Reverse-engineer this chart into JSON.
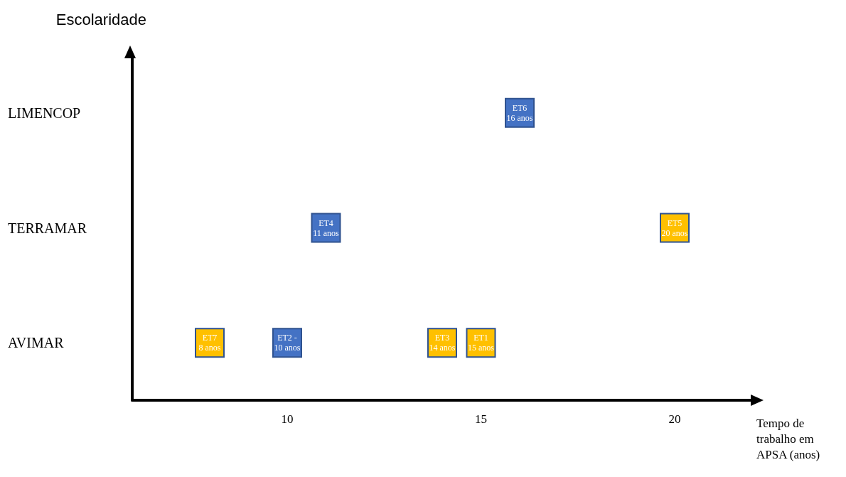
{
  "chart_data": {
    "type": "scatter",
    "orientation": "horizontal",
    "ylabel": "Escolaridade",
    "xlabel": "Tempo de trabalho em APSA (anos)",
    "categories": [
      "LIMENCOP",
      "TERRAMAR",
      "AVIMAR"
    ],
    "xlim": [
      6,
      22
    ],
    "xticks": [
      10,
      15,
      20
    ],
    "grid": false,
    "legend": false,
    "marker": "square",
    "series": [
      {
        "name": "ET7",
        "color": "#ffc000",
        "values": [
          null,
          null,
          8
        ],
        "value_labels": [
          null,
          null,
          "8 anos"
        ]
      },
      {
        "name": "ET2 -",
        "color": "#4472c4",
        "values": [
          null,
          null,
          10
        ],
        "value_labels": [
          null,
          null,
          "10 anos"
        ]
      },
      {
        "name": "ET3",
        "color": "#ffc000",
        "values": [
          null,
          null,
          14
        ],
        "value_labels": [
          null,
          null,
          "14 anos"
        ]
      },
      {
        "name": "ET1",
        "color": "#ffc000",
        "values": [
          null,
          null,
          15
        ],
        "value_labels": [
          null,
          null,
          "15 anos"
        ]
      },
      {
        "name": "ET4",
        "color": "#4472c4",
        "values": [
          null,
          11,
          null
        ],
        "value_labels": [
          null,
          "11 anos",
          null
        ]
      },
      {
        "name": "ET6",
        "color": "#4472c4",
        "values": [
          16,
          null,
          null
        ],
        "value_labels": [
          "16 anos",
          null,
          null
        ]
      },
      {
        "name": "ET5",
        "color": "#ffc000",
        "values": [
          null,
          20,
          null
        ],
        "value_labels": [
          null,
          "20 anos",
          null
        ]
      }
    ]
  }
}
